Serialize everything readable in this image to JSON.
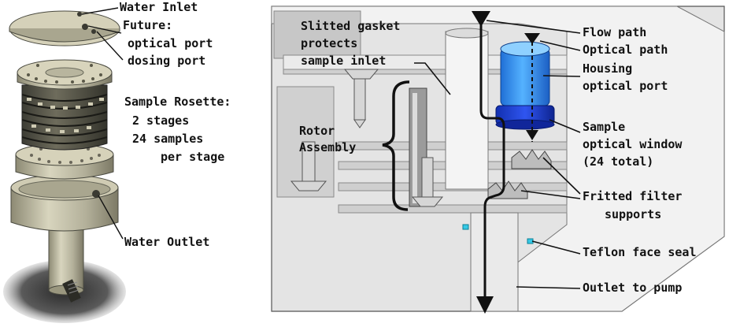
{
  "left_panel": {
    "water_inlet": "Water Inlet",
    "future": "Future:",
    "optical_port": "optical port",
    "dosing_port": "dosing port",
    "rosette_title": "Sample Rosette:",
    "stages": "2 stages",
    "samples": "24 samples",
    "per_stage": "per stage",
    "water_outlet": "Water Outlet"
  },
  "right_panel": {
    "slitted_gasket": "Slitted gasket",
    "protects": "protects",
    "sample_inlet": "sample inlet",
    "rotor": "Rotor",
    "assembly": "Assembly",
    "flow_path": "Flow path",
    "optical_path": "Optical path",
    "housing": "Housing",
    "optical_port": "optical port",
    "sample": "Sample",
    "optical_window": "optical window",
    "total": "(24 total)",
    "fritted_filter": "Fritted filter",
    "supports": "supports",
    "teflon_seal": "Teflon face seal",
    "outlet_pump": "Outlet to pump"
  },
  "colors": {
    "housing_blue": "#2f8cf0",
    "window_blue": "#1a3fd8",
    "metal": "#c9c6b0",
    "section_bg": "#d9d9d9"
  }
}
